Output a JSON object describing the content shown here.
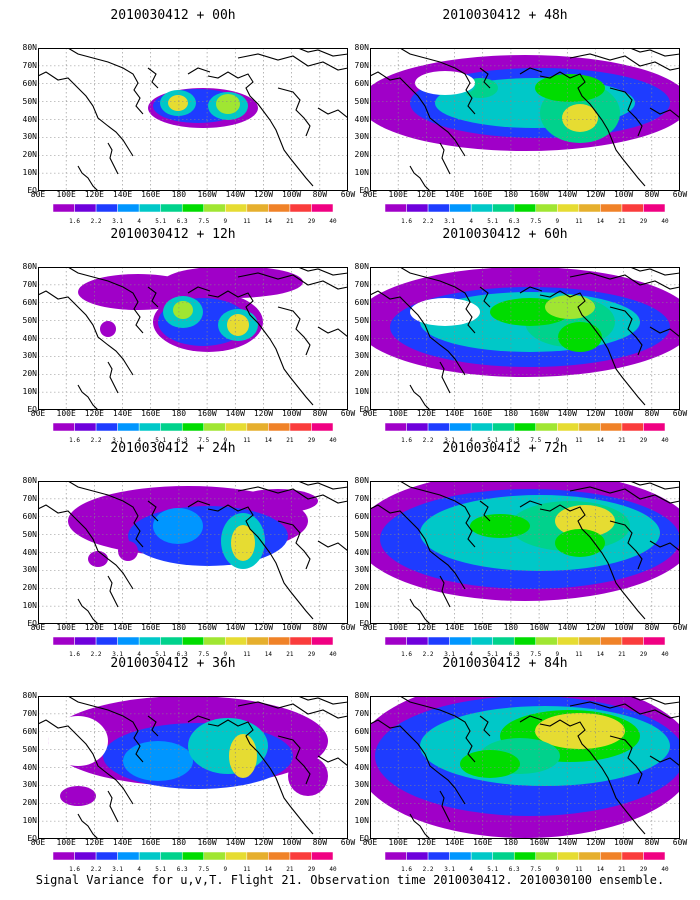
{
  "caption": "Signal Variance for u,v,T. Flight 21. Observation time 2010030412. 2010030100 ensemble.",
  "lat_labels": [
    "80N",
    "70N",
    "60N",
    "50N",
    "40N",
    "30N",
    "20N",
    "10N",
    "EQ"
  ],
  "lon_labels": [
    "80E",
    "100E",
    "120E",
    "140E",
    "160E",
    "180",
    "160W",
    "140W",
    "120W",
    "100W",
    "80W",
    "60W"
  ],
  "colorbar": {
    "labels": [
      "1.6",
      "2.2",
      "3.1",
      "4",
      "5.1",
      "6.3",
      "7.5",
      "9",
      "11",
      "14",
      "21",
      "29",
      "40"
    ],
    "colors": [
      "#a000c8",
      "#6e00dc",
      "#1e3cff",
      "#0096ff",
      "#00c8c8",
      "#00d28c",
      "#00dc00",
      "#a0e632",
      "#e6dc32",
      "#e6af2d",
      "#f08228",
      "#fa3c3c",
      "#f00082"
    ]
  },
  "panels": [
    {
      "title": "2010030412 + 00h",
      "key": "p00"
    },
    {
      "title": "2010030412 + 12h",
      "key": "p12"
    },
    {
      "title": "2010030412 + 24h",
      "key": "p24"
    },
    {
      "title": "2010030412 + 36h",
      "key": "p36"
    },
    {
      "title": "2010030412 + 48h",
      "key": "p48"
    },
    {
      "title": "2010030412 + 60h",
      "key": "p60"
    },
    {
      "title": "2010030412 + 72h",
      "key": "p72"
    },
    {
      "title": "2010030412 + 84h",
      "key": "p84"
    }
  ]
}
